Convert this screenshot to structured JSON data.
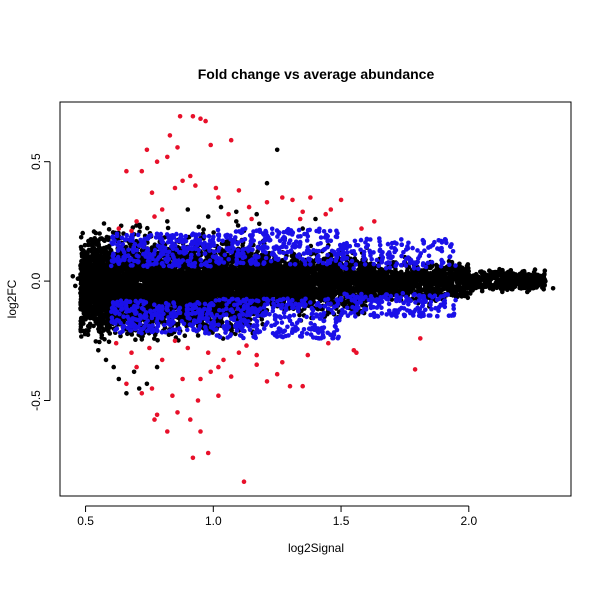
{
  "chart_data": {
    "type": "scatter",
    "title": "Fold change vs average abundance",
    "xlabel": "log2Signal",
    "ylabel": "log2FC",
    "xlim": [
      0.4,
      2.4
    ],
    "ylim": [
      -0.9,
      0.75
    ],
    "xticks": [
      0.5,
      1.0,
      1.5,
      2.0
    ],
    "xtick_labels": [
      "0.5",
      "1.0",
      "1.5",
      "2.0"
    ],
    "yticks": [
      -0.5,
      0.0,
      0.5
    ],
    "ytick_labels": [
      "-0.5",
      "0.0",
      "0.5"
    ],
    "grid": false,
    "legend": "none",
    "series": [
      {
        "color": "#000000",
        "description_points": "dense cloud of all features",
        "points": [
          [
            1.25,
            0.55
          ],
          [
            1.21,
            0.41
          ],
          [
            1.03,
            0.31
          ],
          [
            1.09,
            0.29
          ],
          [
            1.17,
            0.28
          ],
          [
            0.45,
            0.02
          ],
          [
            0.47,
            0.01
          ],
          [
            0.46,
            -0.02
          ],
          [
            0.48,
            -0.05
          ],
          [
            2.33,
            -0.03
          ],
          [
            2.28,
            -0.01
          ],
          [
            2.25,
            0.0
          ],
          [
            2.2,
            0.03
          ],
          [
            2.16,
            0.04
          ],
          [
            2.12,
            0.05
          ],
          [
            0.66,
            -0.47
          ],
          [
            0.71,
            -0.45
          ],
          [
            0.63,
            -0.41
          ],
          [
            0.69,
            -0.38
          ],
          [
            0.74,
            -0.43
          ],
          [
            0.78,
            -0.36
          ],
          [
            0.58,
            -0.33
          ],
          [
            0.55,
            -0.29
          ],
          [
            0.61,
            -0.36
          ],
          [
            1.09,
            0.25
          ],
          [
            1.12,
            0.21
          ],
          [
            1.18,
            0.24
          ],
          [
            1.28,
            0.18
          ],
          [
            1.35,
            0.22
          ],
          [
            1.45,
            0.15
          ],
          [
            1.6,
            0.14
          ],
          [
            1.75,
            0.1
          ],
          [
            1.85,
            0.08
          ],
          [
            1.95,
            0.06
          ],
          [
            2.05,
            0.04
          ],
          [
            1.4,
            0.26
          ],
          [
            0.98,
            0.27
          ],
          [
            0.9,
            0.3
          ],
          [
            0.82,
            0.25
          ]
        ],
        "bands": [
          {
            "x0": 0.48,
            "x1": 0.8,
            "ymin": -0.3,
            "ymax": 0.26,
            "n": 2600
          },
          {
            "x0": 0.8,
            "x1": 1.2,
            "ymin": -0.28,
            "ymax": 0.24,
            "n": 2400
          },
          {
            "x0": 1.2,
            "x1": 1.6,
            "ymin": -0.18,
            "ymax": 0.17,
            "n": 1600
          },
          {
            "x0": 1.6,
            "x1": 2.0,
            "ymin": -0.11,
            "ymax": 0.11,
            "n": 1000
          },
          {
            "x0": 2.0,
            "x1": 2.3,
            "ymin": -0.06,
            "ymax": 0.06,
            "n": 450
          }
        ]
      },
      {
        "color": "#1a10e8",
        "description_points": "significant features, moderate fold change",
        "bands": [
          {
            "x0": 0.6,
            "x1": 1.0,
            "ymin": 0.06,
            "ymax": 0.2,
            "n": 260
          },
          {
            "x0": 0.6,
            "x1": 1.0,
            "ymin": -0.22,
            "ymax": -0.08,
            "n": 280
          },
          {
            "x0": 1.0,
            "x1": 1.5,
            "ymin": 0.07,
            "ymax": 0.22,
            "n": 260
          },
          {
            "x0": 1.0,
            "x1": 1.5,
            "ymin": -0.24,
            "ymax": -0.07,
            "n": 300
          },
          {
            "x0": 1.5,
            "x1": 1.95,
            "ymin": 0.05,
            "ymax": 0.18,
            "n": 150
          },
          {
            "x0": 1.5,
            "x1": 1.95,
            "ymin": -0.15,
            "ymax": -0.05,
            "n": 170
          }
        ]
      },
      {
        "color": "#e8102a",
        "description_points": "significant features, large fold change",
        "points": [
          [
            0.87,
            0.69
          ],
          [
            0.92,
            0.69
          ],
          [
            0.95,
            0.68
          ],
          [
            0.97,
            0.67
          ],
          [
            0.83,
            0.61
          ],
          [
            0.86,
            0.56
          ],
          [
            0.82,
            0.52
          ],
          [
            0.78,
            0.5
          ],
          [
            0.72,
            0.46
          ],
          [
            0.66,
            0.46
          ],
          [
            0.74,
            0.55
          ],
          [
            0.91,
            0.44
          ],
          [
            0.85,
            0.39
          ],
          [
            0.99,
            0.57
          ],
          [
            1.07,
            0.59
          ],
          [
            0.88,
            0.42
          ],
          [
            0.93,
            0.4
          ],
          [
            1.01,
            0.39
          ],
          [
            0.76,
            0.37
          ],
          [
            1.02,
            0.35
          ],
          [
            1.1,
            0.38
          ],
          [
            1.27,
            0.35
          ],
          [
            1.31,
            0.34
          ],
          [
            1.38,
            0.35
          ],
          [
            1.5,
            0.34
          ],
          [
            1.46,
            0.3
          ],
          [
            1.44,
            0.28
          ],
          [
            1.35,
            0.29
          ],
          [
            1.21,
            0.33
          ],
          [
            1.14,
            0.31
          ],
          [
            1.06,
            0.28
          ],
          [
            1.15,
            0.26
          ],
          [
            1.34,
            0.26
          ],
          [
            1.63,
            0.25
          ],
          [
            1.58,
            0.22
          ],
          [
            0.8,
            0.3
          ],
          [
            0.77,
            0.27
          ],
          [
            0.7,
            0.25
          ],
          [
            0.63,
            0.22
          ],
          [
            0.68,
            0.21
          ],
          [
            1.12,
            -0.84
          ],
          [
            0.92,
            -0.74
          ],
          [
            0.98,
            -0.72
          ],
          [
            0.82,
            -0.63
          ],
          [
            0.95,
            -0.63
          ],
          [
            0.77,
            -0.58
          ],
          [
            0.78,
            -0.56
          ],
          [
            0.86,
            -0.55
          ],
          [
            0.91,
            -0.58
          ],
          [
            1.02,
            -0.48
          ],
          [
            0.84,
            -0.48
          ],
          [
            0.72,
            -0.47
          ],
          [
            0.76,
            -0.45
          ],
          [
            0.66,
            -0.43
          ],
          [
            0.88,
            -0.41
          ],
          [
            0.95,
            -0.41
          ],
          [
            0.99,
            -0.38
          ],
          [
            1.02,
            -0.36
          ],
          [
            1.07,
            -0.4
          ],
          [
            1.21,
            -0.42
          ],
          [
            1.25,
            -0.39
          ],
          [
            1.35,
            -0.44
          ],
          [
            1.17,
            -0.35
          ],
          [
            1.27,
            -0.34
          ],
          [
            1.55,
            -0.29
          ],
          [
            1.56,
            -0.3
          ],
          [
            1.79,
            -0.37
          ],
          [
            1.81,
            -0.24
          ],
          [
            1.37,
            -0.31
          ],
          [
            1.45,
            -0.26
          ],
          [
            1.17,
            -0.31
          ],
          [
            1.1,
            -0.3
          ],
          [
            0.98,
            -0.3
          ],
          [
            0.9,
            -0.28
          ],
          [
            0.85,
            -0.25
          ],
          [
            0.75,
            -0.28
          ],
          [
            0.68,
            -0.3
          ],
          [
            0.62,
            -0.26
          ],
          [
            1.04,
            -0.33
          ],
          [
            0.8,
            -0.33
          ],
          [
            1.3,
            -0.44
          ],
          [
            0.94,
            -0.5
          ],
          [
            0.7,
            -0.36
          ],
          [
            1.13,
            -0.27
          ]
        ]
      }
    ]
  }
}
